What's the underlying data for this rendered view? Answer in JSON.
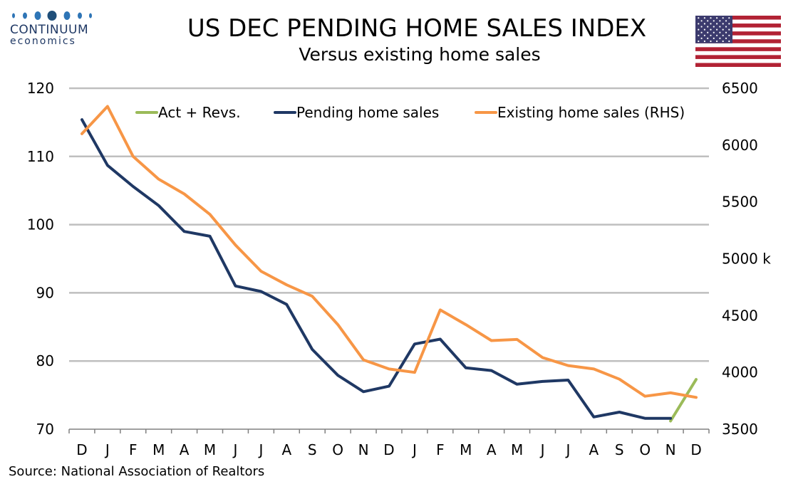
{
  "header": {
    "title": "US DEC PENDING HOME SALES INDEX",
    "subtitle": "Versus existing home sales"
  },
  "logo": {
    "brand": "CONTINUUM",
    "sub": "economics",
    "colors": [
      "#1f4e79",
      "#2e75b6"
    ]
  },
  "flag": {
    "name": "us-flag-icon",
    "colors": {
      "red": "#b22234",
      "white": "#ffffff",
      "blue": "#3c3b6e"
    }
  },
  "footer": {
    "source": "Source: National Association of Realtors"
  },
  "chart_data": {
    "type": "line",
    "title": "US DEC PENDING HOME SALES INDEX",
    "subtitle": "Versus existing home sales",
    "categories": [
      "D",
      "J",
      "F",
      "M",
      "A",
      "M",
      "J",
      "J",
      "A",
      "S",
      "O",
      "N",
      "D",
      "J",
      "F",
      "M",
      "A",
      "M",
      "J",
      "J",
      "A",
      "S",
      "O",
      "N",
      "D"
    ],
    "left_axis": {
      "ylim": [
        70,
        120
      ],
      "ticks": [
        "120",
        "110",
        "100",
        "90",
        "80",
        "70"
      ]
    },
    "right_axis": {
      "ylim": [
        3500,
        6500
      ],
      "ticks": [
        "6500",
        "6000",
        "5500",
        "5000 k",
        "4500",
        "4000",
        "3500"
      ]
    },
    "grid": true,
    "legend_position": "top",
    "series": [
      {
        "name": "Act + Revs.",
        "axis": "left",
        "color": "#9bbb59",
        "values": [
          null,
          null,
          null,
          null,
          null,
          null,
          null,
          null,
          null,
          null,
          null,
          null,
          null,
          null,
          null,
          null,
          null,
          null,
          null,
          null,
          null,
          null,
          null,
          71.2,
          77.3
        ]
      },
      {
        "name": "Pending home sales",
        "axis": "left",
        "color": "#1f3864",
        "values": [
          115.4,
          108.7,
          105.6,
          102.8,
          99.0,
          98.3,
          91.0,
          90.2,
          88.3,
          81.7,
          77.9,
          75.5,
          76.3,
          82.5,
          83.2,
          79.0,
          78.6,
          76.6,
          77.0,
          77.2,
          71.8,
          72.5,
          71.6,
          71.6,
          null
        ]
      },
      {
        "name": "Existing home sales (RHS)",
        "axis": "right",
        "color": "#f79646",
        "values": [
          6100,
          6340,
          5900,
          5700,
          5570,
          5390,
          5120,
          4890,
          4770,
          4670,
          4420,
          4110,
          4030,
          4000,
          4550,
          4420,
          4280,
          4290,
          4130,
          4060,
          4030,
          3940,
          3790,
          3820,
          3780
        ]
      }
    ]
  }
}
